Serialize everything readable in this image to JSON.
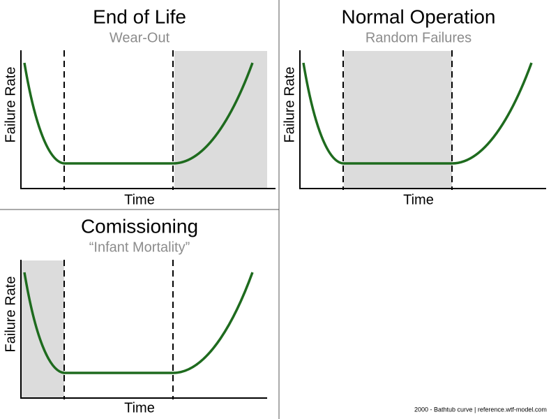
{
  "panels": [
    {
      "title": "End of Life",
      "subtitle": "Wear-Out",
      "x_label": "Time",
      "y_label": "Failure Rate"
    },
    {
      "title": "Normal Operation",
      "subtitle": "Random Failures",
      "x_label": "Time",
      "y_label": "Failure Rate"
    },
    {
      "title": "Comissioning",
      "subtitle": "“Infant Mortality”",
      "x_label": "Time",
      "y_label": "Failure Rate"
    }
  ],
  "footer": "2000 - Bathtub curve | reference.wtf-model.com"
}
